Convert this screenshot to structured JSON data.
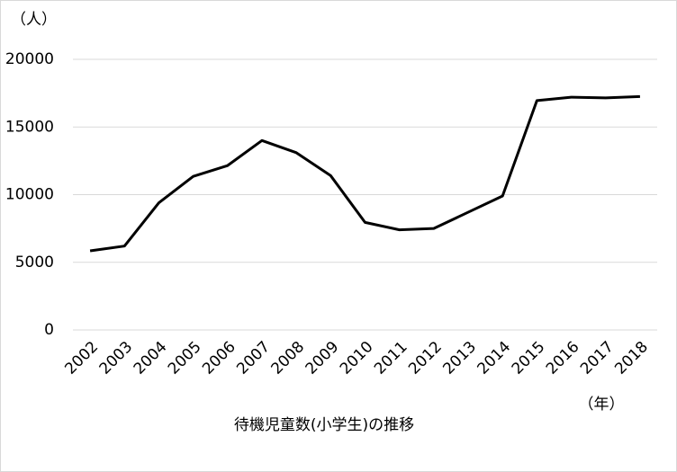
{
  "chart_data": {
    "type": "line",
    "title": "待機児童数(小学生)の推移",
    "y_label": "（人）",
    "x_label": "（年）",
    "categories": [
      "2002",
      "2003",
      "2004",
      "2005",
      "2006",
      "2007",
      "2008",
      "2009",
      "2010",
      "2011",
      "2012",
      "2013",
      "2014",
      "2015",
      "2016",
      "2017",
      "2018"
    ],
    "series": [
      {
        "name": "待機児童数",
        "color": "#000000",
        "values": [
          5850,
          6200,
          9400,
          11350,
          12150,
          14000,
          13100,
          11400,
          7950,
          7400,
          7500,
          8700,
          9900,
          16950,
          17200,
          17150,
          17250
        ]
      }
    ],
    "ylim": [
      0,
      20000
    ],
    "yticks": [
      0,
      5000,
      10000,
      15000,
      20000
    ],
    "grid": true
  }
}
